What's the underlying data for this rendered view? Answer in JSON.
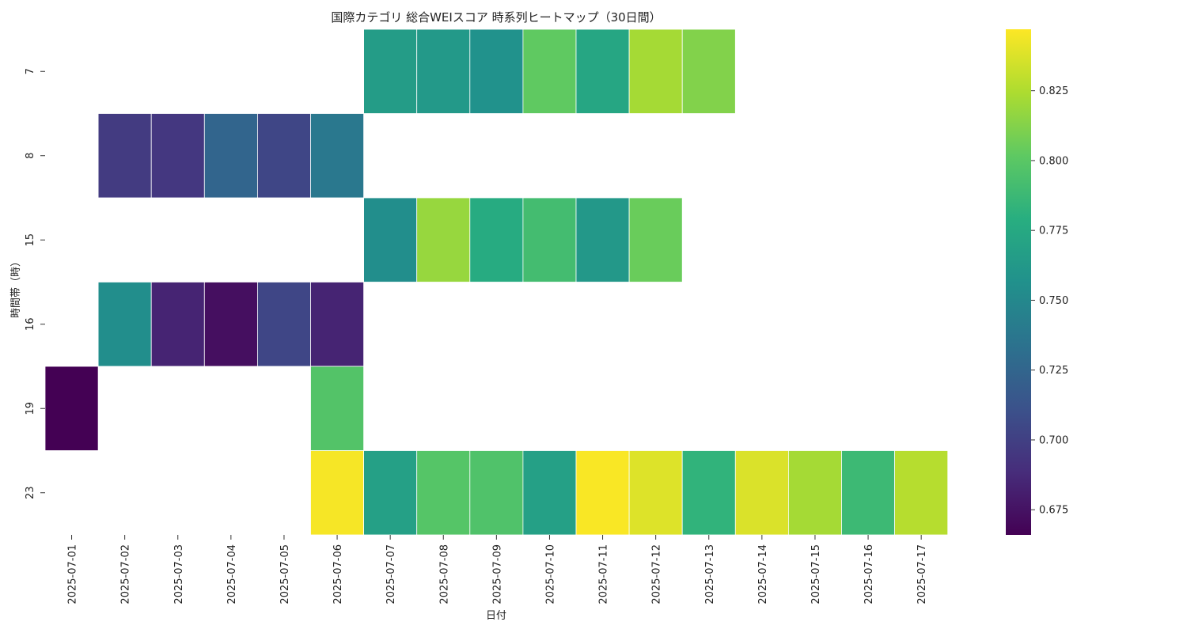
{
  "chart_data": {
    "type": "heatmap",
    "title": "国際カテゴリ 総合WEIスコア 時系列ヒートマップ（30日間）",
    "xlabel": "日付",
    "ylabel": "時間帯（時）",
    "x_categories": [
      "2025-07-01",
      "2025-07-02",
      "2025-07-03",
      "2025-07-04",
      "2025-07-05",
      "2025-07-06",
      "2025-07-07",
      "2025-07-08",
      "2025-07-09",
      "2025-07-10",
      "2025-07-11",
      "2025-07-12",
      "2025-07-13",
      "2025-07-14",
      "2025-07-15",
      "2025-07-16",
      "2025-07-17"
    ],
    "y_categories": [
      "7",
      "8",
      "15",
      "16",
      "19",
      "23"
    ],
    "values": [
      [
        null,
        null,
        null,
        null,
        null,
        null,
        0.765,
        0.763,
        0.757,
        0.802,
        0.773,
        0.822,
        0.812,
        null,
        null,
        null,
        null
      ],
      [
        null,
        0.697,
        0.695,
        0.725,
        0.704,
        0.738,
        null,
        null,
        null,
        null,
        null,
        null,
        null,
        null,
        null,
        null,
        null
      ],
      [
        null,
        null,
        null,
        null,
        null,
        null,
        0.754,
        0.818,
        0.777,
        0.791,
        0.762,
        0.805,
        null,
        null,
        null,
        null,
        null
      ],
      [
        null,
        0.754,
        0.684,
        0.673,
        0.704,
        0.684,
        null,
        null,
        null,
        null,
        null,
        null,
        null,
        null,
        null,
        null,
        null
      ],
      [
        0.666,
        null,
        null,
        null,
        null,
        0.797,
        null,
        null,
        null,
        null,
        null,
        null,
        null,
        null,
        null,
        null,
        null
      ],
      [
        null,
        null,
        null,
        null,
        null,
        0.845,
        0.768,
        0.798,
        0.796,
        0.768,
        0.846,
        0.838,
        0.783,
        0.837,
        0.822,
        0.788,
        0.827
      ]
    ],
    "colorscale": "viridis",
    "vmin": 0.666,
    "vmax": 0.847,
    "colorbar_ticks": [
      "0.675",
      "0.700",
      "0.725",
      "0.750",
      "0.775",
      "0.800",
      "0.825"
    ],
    "grid": false,
    "legend": "colorbar-right"
  }
}
